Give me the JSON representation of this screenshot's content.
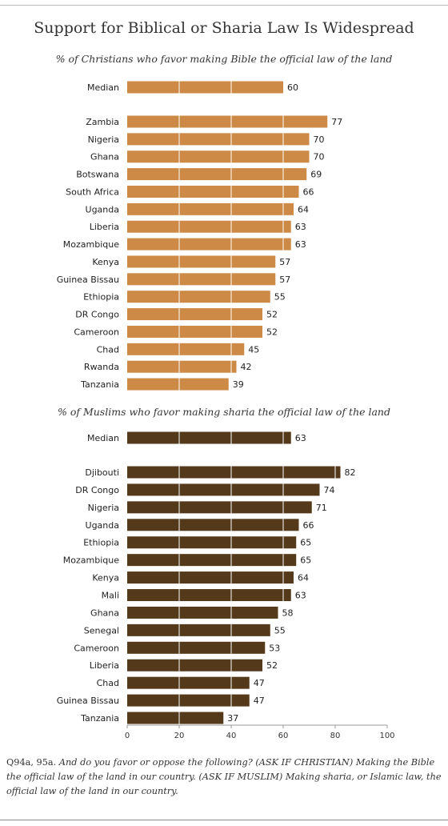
{
  "title": "Support for Biblical or Sharia Law Is Widespread",
  "footnote": {
    "code": "Q94a, 95a.",
    "text": "And do you favor or oppose the following? (ASK IF CHRISTIAN) Making the Bible the official law of the land in our country. (ASK IF MUSLIM) Making sharia, or Islamic law, the official law of the land in our country."
  },
  "colors": {
    "christian": "#CC8A46",
    "muslim": "#543A1A",
    "gridline": "#ffffff"
  },
  "chart_data": [
    {
      "type": "bar",
      "orientation": "horizontal",
      "title": "% of Christians who favor making Bible the official law of the land",
      "xlim": [
        0,
        100
      ],
      "median": {
        "label": "Median",
        "value": 60
      },
      "categories": [
        "Zambia",
        "Nigeria",
        "Ghana",
        "Botswana",
        "South Africa",
        "Uganda",
        "Liberia",
        "Mozambique",
        "Kenya",
        "Guinea Bissau",
        "Ethiopia",
        "DR Congo",
        "Cameroon",
        "Chad",
        "Rwanda",
        "Tanzania"
      ],
      "values": [
        77,
        70,
        70,
        69,
        66,
        64,
        63,
        63,
        57,
        57,
        55,
        52,
        52,
        45,
        42,
        39
      ]
    },
    {
      "type": "bar",
      "orientation": "horizontal",
      "title": "% of Muslims who favor making sharia the official law of the land",
      "xlim": [
        0,
        100
      ],
      "xticks": [
        0,
        20,
        40,
        60,
        80,
        100
      ],
      "median": {
        "label": "Median",
        "value": 63
      },
      "categories": [
        "Djibouti",
        "DR Congo",
        "Nigeria",
        "Uganda",
        "Ethiopia",
        "Mozambique",
        "Kenya",
        "Mali",
        "Ghana",
        "Senegal",
        "Cameroon",
        "Liberia",
        "Chad",
        "Guinea Bissau",
        "Tanzania"
      ],
      "values": [
        82,
        74,
        71,
        66,
        65,
        65,
        64,
        63,
        58,
        55,
        53,
        52,
        47,
        47,
        37
      ]
    }
  ]
}
